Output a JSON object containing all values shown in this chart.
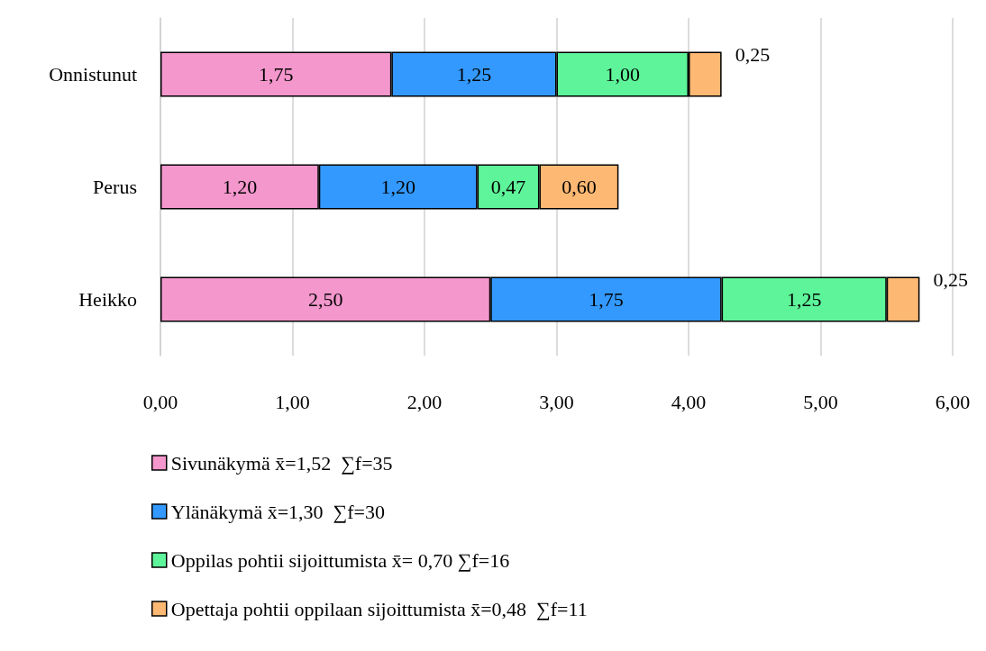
{
  "chart_data": {
    "type": "bar",
    "orientation": "horizontal",
    "stacked": true,
    "categories": [
      "Onnistunut",
      "Perus",
      "Heikko"
    ],
    "series": [
      {
        "name": "Sivunäkymä x̄=1,52  ∑f=35",
        "color": "#f397cc",
        "values": [
          1.75,
          1.2,
          2.5
        ],
        "value_labels": [
          "1,75",
          "1,20",
          "2,50"
        ]
      },
      {
        "name": "Ylänäkymä x̄=1,30  ∑f=30",
        "color": "#3399ff",
        "values": [
          1.25,
          1.2,
          1.75
        ],
        "value_labels": [
          "1,25",
          "1,20",
          "1,75"
        ]
      },
      {
        "name": "Oppilas pohtii sijoittumista x̄= 0,70 ∑f=16",
        "color": "#5ef59a",
        "values": [
          1.0,
          0.47,
          1.25
        ],
        "value_labels": [
          "1,00",
          "0,47",
          "1,25"
        ]
      },
      {
        "name": "Opettaja pohtii oppilaan sijoittumista x̄=0,48  ∑f=11",
        "color": "#fdb873",
        "values": [
          0.25,
          0.6,
          0.25
        ],
        "value_labels": [
          "0,25",
          "0,60",
          "0,25"
        ]
      }
    ],
    "xlim": [
      0,
      6
    ],
    "xticks": [
      {
        "value": 0,
        "label": "0,00"
      },
      {
        "value": 1,
        "label": "1,00"
      },
      {
        "value": 2,
        "label": "2,00"
      },
      {
        "value": 3,
        "label": "3,00"
      },
      {
        "value": 4,
        "label": "4,00"
      },
      {
        "value": 5,
        "label": "5,00"
      },
      {
        "value": 6,
        "label": "6,00"
      }
    ],
    "grid": "x",
    "legend": "bottom left"
  }
}
